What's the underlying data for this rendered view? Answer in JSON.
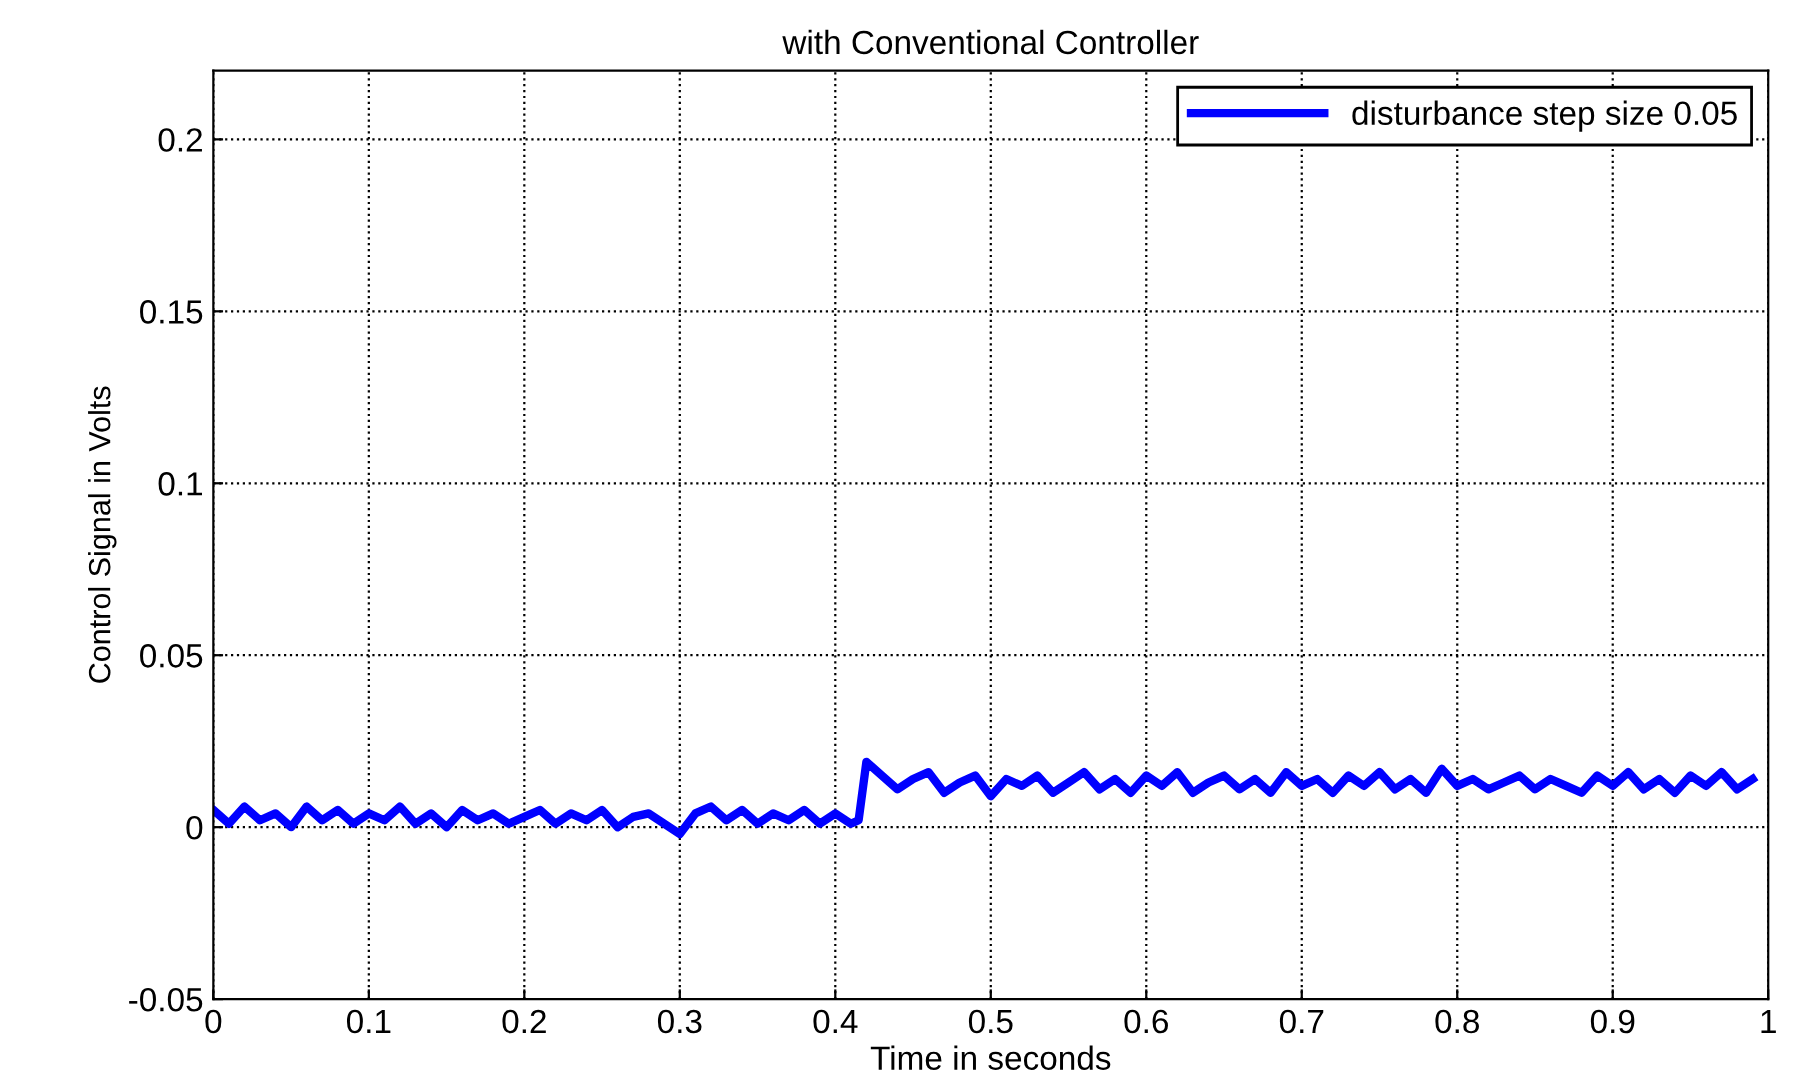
{
  "chart_data": {
    "type": "line",
    "title": "with Conventional Controller",
    "xlabel": "Time in seconds",
    "ylabel": "Control Signal in Volts",
    "x": [
      0,
      0.01,
      0.02,
      0.03,
      0.04,
      0.05,
      0.06,
      0.07,
      0.08,
      0.09,
      0.1,
      0.11,
      0.12,
      0.13,
      0.14,
      0.15,
      0.16,
      0.17,
      0.18,
      0.19,
      0.2,
      0.21,
      0.22,
      0.23,
      0.24,
      0.25,
      0.26,
      0.27,
      0.28,
      0.29,
      0.3,
      0.31,
      0.32,
      0.33,
      0.34,
      0.35,
      0.36,
      0.37,
      0.38,
      0.39,
      0.4,
      0.41,
      0.415,
      0.42,
      0.43,
      0.44,
      0.45,
      0.46,
      0.47,
      0.48,
      0.49,
      0.5,
      0.51,
      0.52,
      0.53,
      0.54,
      0.55,
      0.56,
      0.57,
      0.58,
      0.59,
      0.6,
      0.61,
      0.62,
      0.63,
      0.64,
      0.65,
      0.66,
      0.67,
      0.68,
      0.69,
      0.7,
      0.71,
      0.72,
      0.73,
      0.74,
      0.75,
      0.76,
      0.77,
      0.78,
      0.79,
      0.8,
      0.81,
      0.82,
      0.83,
      0.84,
      0.85,
      0.86,
      0.87,
      0.88,
      0.89,
      0.9,
      0.91,
      0.92,
      0.93,
      0.94,
      0.95,
      0.96,
      0.97,
      0.98,
      0.99
    ],
    "series": [
      {
        "name": "disturbance step size 0.05",
        "color": "#0000ff",
        "values": [
          0.005,
          0.001,
          0.006,
          0.002,
          0.004,
          0.0,
          0.006,
          0.002,
          0.005,
          0.001,
          0.004,
          0.002,
          0.006,
          0.001,
          0.004,
          0.0,
          0.005,
          0.002,
          0.004,
          0.001,
          0.003,
          0.005,
          0.001,
          0.004,
          0.002,
          0.005,
          0.0,
          0.003,
          0.004,
          0.001,
          -0.002,
          0.004,
          0.006,
          0.002,
          0.005,
          0.001,
          0.004,
          0.002,
          0.005,
          0.001,
          0.004,
          0.001,
          0.002,
          0.019,
          0.015,
          0.011,
          0.014,
          0.016,
          0.01,
          0.013,
          0.015,
          0.009,
          0.014,
          0.012,
          0.015,
          0.01,
          0.013,
          0.016,
          0.011,
          0.014,
          0.01,
          0.015,
          0.012,
          0.016,
          0.01,
          0.013,
          0.015,
          0.011,
          0.014,
          0.01,
          0.016,
          0.012,
          0.014,
          0.01,
          0.015,
          0.012,
          0.016,
          0.011,
          0.014,
          0.01,
          0.017,
          0.012,
          0.014,
          0.011,
          0.013,
          0.015,
          0.011,
          0.014,
          0.012,
          0.01,
          0.015,
          0.012,
          0.016,
          0.011,
          0.014,
          0.01,
          0.015,
          0.012,
          0.016,
          0.011,
          0.014
        ]
      }
    ],
    "xlim": [
      0,
      1
    ],
    "ylim": [
      -0.05,
      0.22
    ],
    "xticks": [
      0,
      0.1,
      0.2,
      0.3,
      0.4,
      0.5,
      0.6,
      0.7,
      0.8,
      0.9,
      1
    ],
    "yticks": [
      -0.05,
      0,
      0.05,
      0.1,
      0.15,
      0.2
    ],
    "grid": true,
    "line_style": "solid",
    "legend": "top right"
  }
}
